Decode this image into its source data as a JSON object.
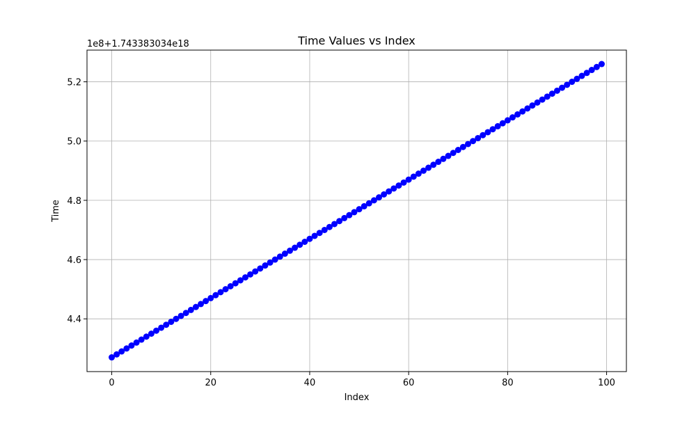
{
  "chart_data": {
    "type": "scatter",
    "title": "Time Values vs Index",
    "xlabel": "Index",
    "ylabel": "Time",
    "offset_label": "1e8+1.743383034e18",
    "xlim": [
      -5,
      104
    ],
    "ylim": [
      4.222,
      5.307
    ],
    "x_ticks": [
      0,
      20,
      40,
      60,
      80,
      100
    ],
    "x_tick_labels": [
      "0",
      "20",
      "40",
      "60",
      "80",
      "100"
    ],
    "y_ticks": [
      4.4,
      4.6,
      4.8,
      5.0,
      5.2
    ],
    "y_tick_labels": [
      "4.4",
      "4.6",
      "4.8",
      "5.0",
      "5.2"
    ],
    "grid": true,
    "series": [
      {
        "color": "#0000ff",
        "line": true,
        "marker": "circle",
        "x_start": 0,
        "x_end": 99,
        "y_start": 4.27,
        "y_end": 5.26
      }
    ]
  }
}
